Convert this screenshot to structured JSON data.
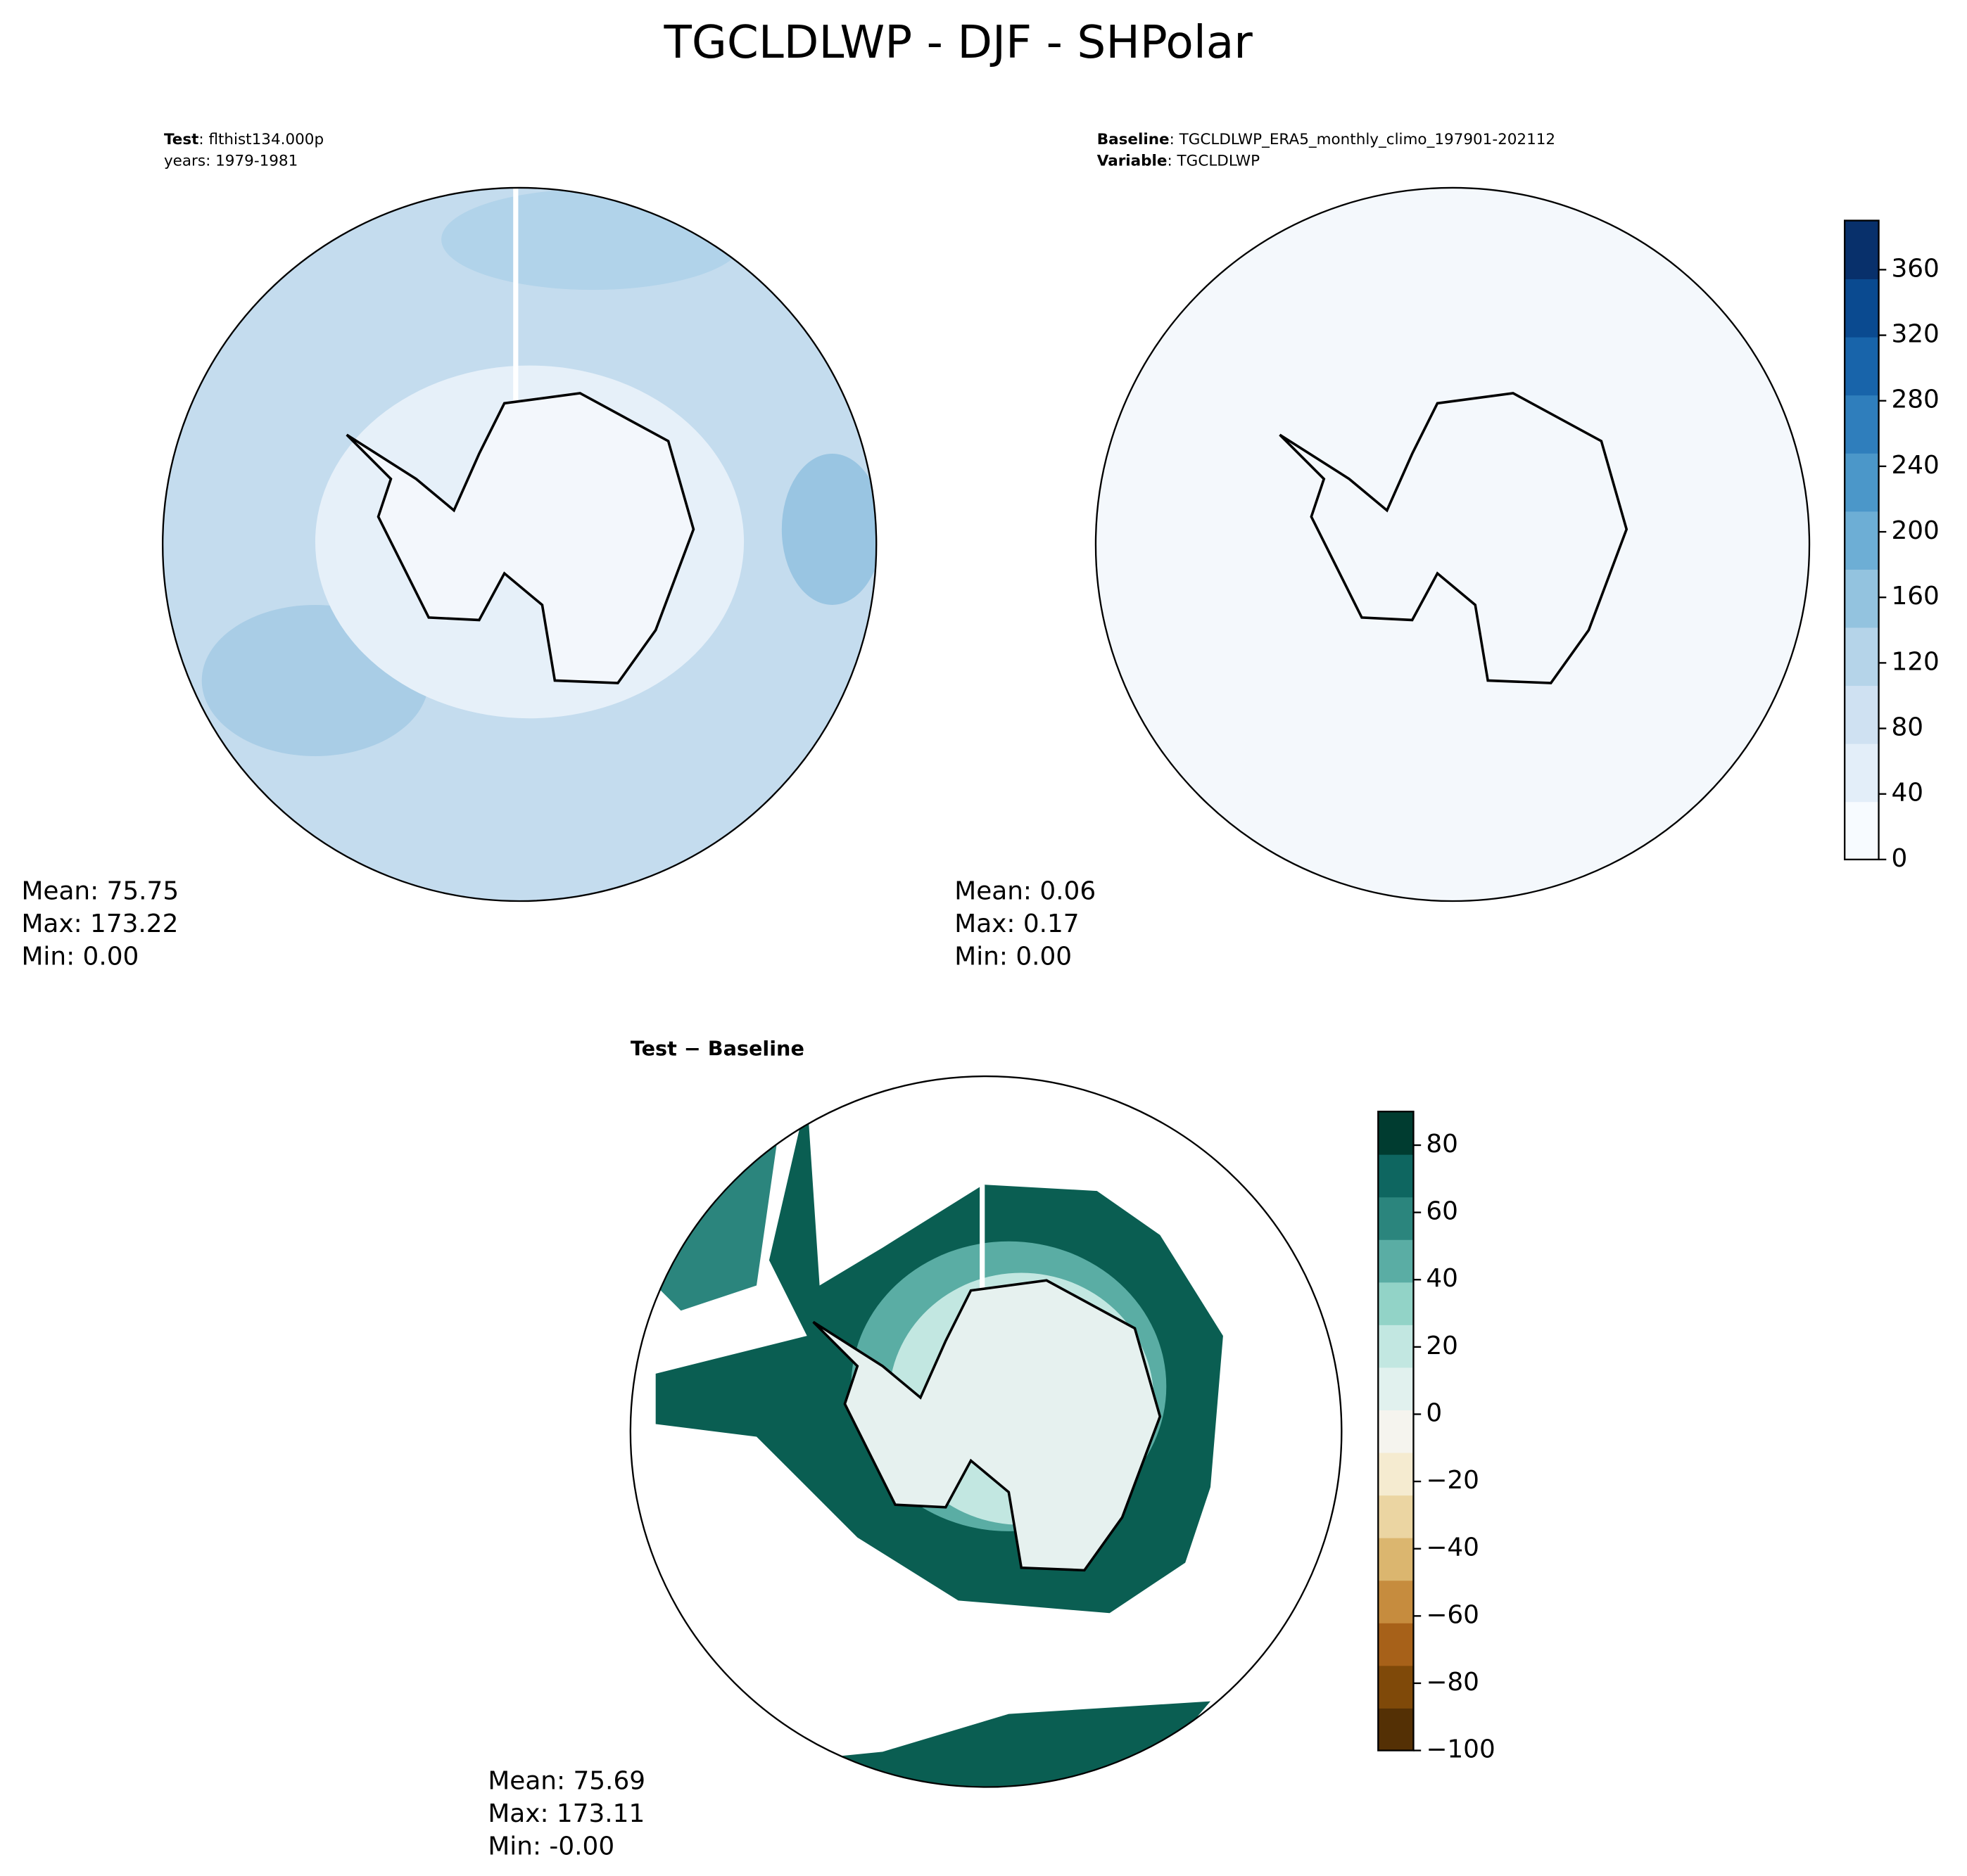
{
  "chart_data": [
    {
      "type": "contour-map",
      "suptitle": "TGCLDLWP - DJF - SHPolar",
      "label_key": "Test",
      "label_text": ": flthist134.000p",
      "years": "years: 1979-1981",
      "stats": [
        "Mean: 75.75",
        "Max: 173.22",
        "Min:  0.00"
      ]
    },
    {
      "type": "contour-map",
      "label_key": "Baseline",
      "label_text": ": TGCLDLWP_ERA5_monthly_climo_197901-202112",
      "variable_key": "Variable",
      "variable_text": ": TGCLDLWP",
      "stats": [
        "Mean:  0.06",
        "Max:  0.17",
        "Min:  0.00"
      ],
      "clim": [
        0,
        390
      ],
      "cticks": [
        0,
        40,
        80,
        120,
        160,
        200,
        240,
        280,
        320,
        360
      ],
      "colors": [
        "#f7fbff",
        "#e3eef9",
        "#cfe1f2",
        "#b5d4e9",
        "#93c3df",
        "#6daed5",
        "#4b97c9",
        "#2f7ebc",
        "#1864aa",
        "#0a4a90",
        "#08306b"
      ]
    },
    {
      "type": "contour-map",
      "title": "Test − Baseline",
      "stats": [
        "Mean: 75.69",
        "Max: 173.11",
        "Min: -0.00"
      ],
      "clim": [
        -100,
        90
      ],
      "cticks": [
        {
          "value": -100,
          "label": "−100"
        },
        {
          "value": -80,
          "label": "−80"
        },
        {
          "value": -60,
          "label": "−60"
        },
        {
          "value": -40,
          "label": "−40"
        },
        {
          "value": -20,
          "label": "−20"
        },
        0,
        20,
        40,
        60,
        80
      ],
      "colors": [
        "#543005",
        "#7f4909",
        "#a76119",
        "#c68c3e",
        "#dbb66f",
        "#ebd5a2",
        "#f5ebd0",
        "#f5f4ee",
        "#e1f1ee",
        "#c2e7e1",
        "#92d3c7",
        "#5aada4",
        "#2b857d",
        "#0e6660",
        "#003c30"
      ]
    }
  ]
}
